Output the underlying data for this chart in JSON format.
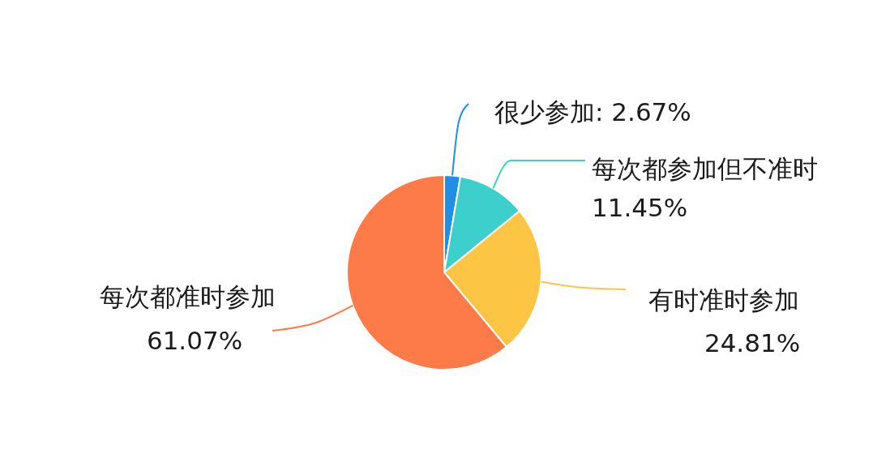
{
  "chart_data": {
    "type": "pie",
    "categories": [
      "很少参加",
      "每次都参加但不准时",
      "有时准时参加",
      "每次都准时参加"
    ],
    "values": [
      2.67,
      11.45,
      24.81,
      61.07
    ],
    "value_labels": [
      "2.67%",
      "11.45%",
      "24.81%",
      "61.07%"
    ],
    "colors": [
      "#1f8fe6",
      "#3dcfcb",
      "#fdc544",
      "#fd7b48"
    ]
  }
}
